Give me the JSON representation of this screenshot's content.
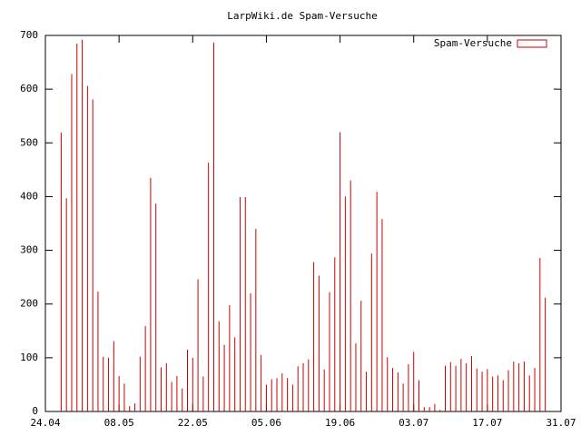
{
  "chart_data": {
    "type": "impulse",
    "title": "LarpWiki.de Spam-Versuche",
    "x": [
      "27.04",
      "28.04",
      "29.04",
      "30.04",
      "01.05",
      "02.05",
      "03.05",
      "04.05",
      "05.05",
      "06.05",
      "07.05",
      "08.05",
      "09.05",
      "10.05",
      "11.05",
      "12.05",
      "13.05",
      "14.05",
      "15.05",
      "16.05",
      "17.05",
      "18.05",
      "19.05",
      "20.05",
      "21.05",
      "22.05",
      "23.05",
      "24.05",
      "25.05",
      "26.05",
      "27.05",
      "28.05",
      "29.05",
      "30.05",
      "31.05",
      "01.06",
      "02.06",
      "03.06",
      "04.06",
      "05.06",
      "06.06",
      "07.06",
      "08.06",
      "09.06",
      "10.06",
      "11.06",
      "12.06",
      "13.06",
      "14.06",
      "15.06",
      "16.06",
      "17.06",
      "18.06",
      "19.06",
      "20.06",
      "21.06",
      "22.06",
      "23.06",
      "24.06",
      "25.06",
      "26.06",
      "27.06",
      "28.06",
      "29.06",
      "30.06",
      "01.07",
      "02.07",
      "03.07",
      "04.07",
      "05.07",
      "06.07",
      "07.07",
      "08.07",
      "09.07",
      "10.07",
      "11.07",
      "12.07",
      "13.07",
      "14.07",
      "15.07",
      "16.07",
      "17.07",
      "18.07",
      "19.07",
      "20.07",
      "21.07",
      "22.07",
      "23.07",
      "24.07",
      "25.07",
      "26.07",
      "27.07",
      "28.07"
    ],
    "series": [
      {
        "name": "Spam-Versuche",
        "color": "#cc0000",
        "values": [
          519,
          397,
          628,
          685,
          692,
          606,
          581,
          223,
          102,
          100,
          131,
          66,
          52,
          10,
          15,
          102,
          159,
          435,
          387,
          82,
          90,
          55,
          66,
          43,
          115,
          100,
          246,
          65,
          463,
          687,
          168,
          124,
          198,
          138,
          399,
          399,
          220,
          340,
          105,
          50,
          60,
          62,
          71,
          62,
          50,
          84,
          90,
          97,
          278,
          253,
          78,
          222,
          287,
          520,
          400,
          430,
          127,
          206,
          74,
          294,
          409,
          358,
          101,
          81,
          73,
          52,
          88,
          111,
          58,
          8,
          8,
          14,
          3,
          85,
          92,
          85,
          98,
          90,
          103,
          80,
          74,
          79,
          65,
          67,
          58,
          77,
          93,
          90,
          93,
          67,
          81,
          286,
          212
        ]
      }
    ],
    "xlim": [
      "24.04",
      "31.07"
    ],
    "xticks": [
      "24.04",
      "08.05",
      "22.05",
      "05.06",
      "19.06",
      "03.07",
      "17.07",
      "31.07"
    ],
    "ylim": [
      0,
      700
    ],
    "yticks": [
      0,
      100,
      200,
      300,
      400,
      500,
      600,
      700
    ],
    "legend": "top-right"
  }
}
